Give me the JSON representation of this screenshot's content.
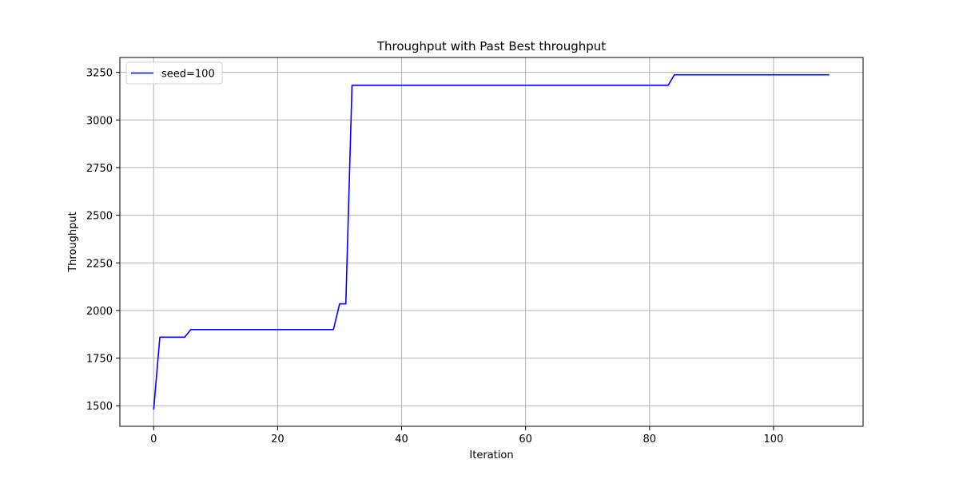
{
  "chart_data": {
    "type": "line",
    "title": "Throughput with Past Best throughput",
    "xlabel": "Iteration",
    "ylabel": "Throughput",
    "xlim": [
      -5.45,
      114.45
    ],
    "ylim": [
      1392,
      3328
    ],
    "xticks": [
      0,
      20,
      40,
      60,
      80,
      100
    ],
    "yticks": [
      1500,
      1750,
      2000,
      2250,
      2500,
      2750,
      3000,
      3250
    ],
    "grid": true,
    "legend": "top-left",
    "series": [
      {
        "name": "seed=100",
        "color": "#0000ff",
        "x": [
          0,
          1,
          5,
          6,
          29,
          30,
          31,
          32,
          83,
          84,
          109
        ],
        "y": [
          1480,
          1860,
          1860,
          1900,
          1900,
          2035,
          2035,
          3182,
          3182,
          3237,
          3237
        ]
      }
    ]
  }
}
